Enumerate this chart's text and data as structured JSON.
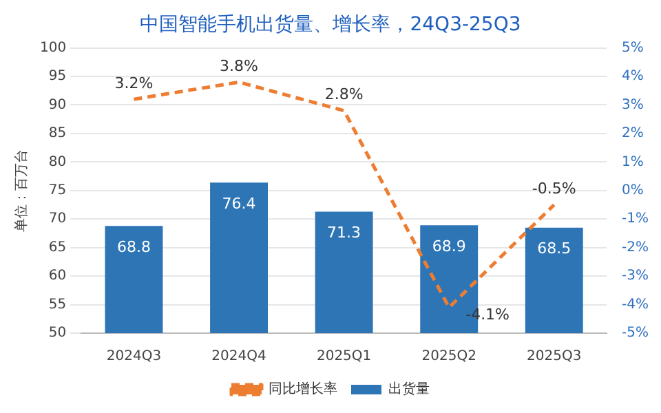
{
  "chart_data": {
    "type": "bar",
    "title": "中国智能手机出货量、增长率，24Q3-25Q3",
    "ylabel": "单位：百万台",
    "categories": [
      "2024Q3",
      "2024Q4",
      "2025Q1",
      "2025Q2",
      "2025Q3"
    ],
    "series": [
      {
        "name": "出货量",
        "color": "#2e75b6",
        "values": [
          68.8,
          76.4,
          71.3,
          68.9,
          68.5
        ],
        "value_labels": [
          "68.8",
          "76.4",
          "71.3",
          "68.9",
          "68.5"
        ]
      },
      {
        "name": "同比增长率",
        "type": "line",
        "axis": "y2",
        "color": "#ed7d31",
        "line_style": "dashed",
        "marker": "none",
        "values": [
          3.2,
          3.8,
          2.8,
          -4.1,
          -0.5
        ],
        "value_labels": [
          "3.2%",
          "3.8%",
          "2.8%",
          "-4.1%",
          "-0.5%"
        ]
      }
    ],
    "ylim": [
      50,
      100
    ],
    "yticks": [
      50,
      55,
      60,
      65,
      70,
      75,
      80,
      85,
      90,
      95,
      100
    ],
    "y2lim": [
      -5,
      5
    ],
    "y2ticks": [
      {
        "value": -5,
        "label": "-5%"
      },
      {
        "value": -4,
        "label": "-4%"
      },
      {
        "value": -3,
        "label": "-3%"
      },
      {
        "value": -2,
        "label": "-2%"
      },
      {
        "value": -1,
        "label": "-1%"
      },
      {
        "value": 0,
        "label": "0%"
      },
      {
        "value": 1,
        "label": "1%"
      },
      {
        "value": 2,
        "label": "2%"
      },
      {
        "value": 3,
        "label": "3%"
      },
      {
        "value": 4,
        "label": "4%"
      },
      {
        "value": 5,
        "label": "5%"
      }
    ],
    "grid": "y",
    "legend": "bottom"
  }
}
